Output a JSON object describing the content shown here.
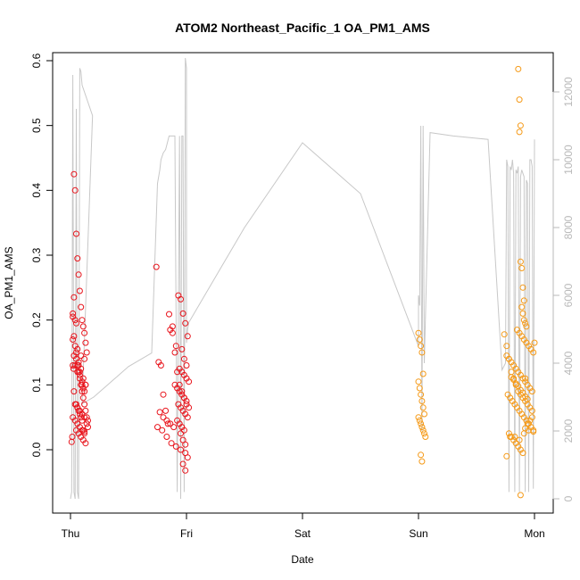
{
  "chart_data": {
    "type": "scatter",
    "title": "ATOM2 Northeast_Pacific_1 OA_PM1_AMS",
    "xlabel": "Date",
    "ylabel": "OA_PM1_AMS",
    "x_ticks": [
      "Thu",
      "Fri",
      "Sat",
      "Sun",
      "Mon"
    ],
    "xlim": [
      0,
      4
    ],
    "ylim": [
      -0.1,
      0.6
    ],
    "y_ticks": [
      "0.0",
      "0.1",
      "0.2",
      "0.3",
      "0.4",
      "0.5",
      "0.6"
    ],
    "y2_ticks": [
      "0",
      "2000",
      "4000",
      "6000",
      "8000",
      "10000",
      "12000"
    ],
    "y2lim": [
      0,
      12000
    ],
    "grid": false,
    "colors": {
      "early_points": "#e8141c",
      "late_points": "#f59a18",
      "altitude_line": "#c8c8c8",
      "right_axis": "#b9b9b9"
    },
    "series": [
      {
        "color": "early_points",
        "x": [
          0.01,
          0.015,
          0.02,
          0.025,
          0.03,
          0.02,
          0.03,
          0.04,
          0.05,
          0.06,
          0.07,
          0.08,
          0.09,
          0.1,
          0.11,
          0.12,
          0.13,
          0.14,
          0.03,
          0.04,
          0.05,
          0.06,
          0.07,
          0.08,
          0.09,
          0.1,
          0.11,
          0.12,
          0.05,
          0.06,
          0.07,
          0.08,
          0.09,
          0.1,
          0.11,
          0.12,
          0.13,
          0.02,
          0.03,
          0.04,
          0.05,
          0.06,
          0.07,
          0.08,
          0.09,
          0.1,
          0.11,
          0.12,
          0.13,
          0.14,
          0.15,
          0.03,
          0.04,
          0.06,
          0.08,
          0.1,
          0.12,
          0.02,
          0.05,
          0.07,
          0.09,
          0.11,
          0.13,
          0.04,
          0.06,
          0.08,
          0.1,
          0.12,
          0.14,
          0.15,
          0.05,
          0.07,
          0.09,
          0.11,
          0.13,
          0.02,
          0.04,
          0.06,
          0.08,
          0.1,
          0.12
        ],
        "y": [
          0.012,
          0.02,
          0.13,
          0.125,
          0.09,
          0.21,
          0.235,
          0.2,
          0.195,
          0.155,
          0.13,
          0.12,
          0.145,
          0.105,
          0.095,
          0.14,
          0.165,
          0.15,
          0.425,
          0.4,
          0.333,
          0.295,
          0.27,
          0.245,
          0.22,
          0.2,
          0.19,
          0.18,
          0.07,
          0.065,
          0.06,
          0.055,
          0.05,
          0.045,
          0.03,
          0.025,
          0.1,
          0.205,
          0.175,
          0.16,
          0.14,
          0.13,
          0.12,
          0.11,
          0.1,
          0.09,
          0.08,
          0.07,
          0.06,
          0.05,
          0.045,
          0.145,
          0.13,
          0.12,
          0.115,
          0.1,
          0.09,
          0.17,
          0.15,
          0.135,
          0.125,
          0.11,
          0.1,
          0.07,
          0.065,
          0.06,
          0.055,
          0.05,
          0.04,
          0.035,
          0.03,
          0.025,
          0.02,
          0.015,
          0.01,
          0.05,
          0.045,
          0.04,
          0.035,
          0.03,
          0.028
        ]
      },
      {
        "color": "early_points",
        "x": [
          0.74,
          0.76,
          0.78,
          0.8,
          0.82,
          0.84,
          0.86,
          0.88,
          0.9,
          0.92,
          0.94,
          0.96,
          0.98,
          1.0,
          1.02,
          0.75,
          0.79,
          0.83,
          0.87,
          0.91,
          0.95,
          0.99,
          0.93,
          0.95,
          0.97,
          0.99,
          1.01,
          0.96,
          0.98,
          1.0,
          0.94,
          0.96,
          0.98,
          1.0,
          1.02,
          0.9,
          0.92,
          0.94,
          0.96,
          0.98,
          1.0,
          0.93,
          0.95,
          0.97,
          0.99,
          1.01,
          0.92,
          0.94,
          0.96,
          0.98,
          0.85,
          0.88,
          0.91,
          0.77,
          0.8,
          0.83,
          0.86,
          0.89,
          0.97,
          0.99,
          1.01,
          0.95,
          0.97,
          0.99
        ],
        "y": [
          0.282,
          0.135,
          0.13,
          0.085,
          0.06,
          0.04,
          0.185,
          0.18,
          0.15,
          0.12,
          0.1,
          0.09,
          0.08,
          0.07,
          0.065,
          0.035,
          0.03,
          0.02,
          0.01,
          0.005,
          0.0,
          -0.005,
          0.238,
          0.232,
          0.21,
          0.195,
          0.175,
          0.155,
          0.14,
          0.13,
          0.125,
          0.12,
          0.115,
          0.11,
          0.105,
          0.1,
          0.095,
          0.09,
          0.085,
          0.08,
          0.075,
          0.07,
          0.065,
          0.06,
          0.055,
          0.05,
          0.045,
          0.04,
          0.035,
          0.03,
          0.209,
          0.19,
          0.16,
          0.058,
          0.05,
          0.045,
          0.04,
          0.035,
          -0.022,
          -0.032,
          -0.012,
          0.025,
          0.015,
          0.008
        ]
      },
      {
        "color": "late_points",
        "x": [
          3.0,
          3.01,
          3.02,
          3.03,
          3.04,
          3.0,
          3.01,
          3.02,
          3.03,
          3.04,
          3.05,
          3.0,
          3.01,
          3.02,
          3.03,
          3.04,
          3.05,
          3.06,
          3.02,
          3.03
        ],
        "y": [
          0.18,
          0.17,
          0.16,
          0.15,
          0.117,
          0.105,
          0.095,
          0.085,
          0.075,
          0.065,
          0.055,
          0.05,
          0.045,
          0.04,
          0.035,
          0.03,
          0.025,
          0.02,
          -0.008,
          -0.018
        ]
      },
      {
        "color": "late_points",
        "x": [
          3.74,
          3.76,
          3.78,
          3.8,
          3.82,
          3.84,
          3.86,
          3.88,
          3.9,
          3.92,
          3.94,
          3.96,
          3.98,
          4.0,
          3.86,
          3.87,
          3.88,
          3.87,
          3.88,
          3.89,
          3.9,
          3.91,
          3.89,
          3.9,
          3.91,
          3.92,
          3.93,
          3.85,
          3.87,
          3.89,
          3.91,
          3.93,
          3.95,
          3.97,
          3.99,
          3.76,
          3.78,
          3.8,
          3.82,
          3.84,
          3.86,
          3.88,
          3.9,
          3.92,
          3.94,
          3.96,
          3.98,
          3.77,
          3.79,
          3.81,
          3.83,
          3.85,
          3.87,
          3.89,
          3.91,
          3.93,
          3.95,
          3.97,
          3.99,
          3.78,
          3.8,
          3.82,
          3.84,
          3.86,
          3.88,
          3.9,
          3.92,
          3.94,
          3.96,
          3.98,
          3.8,
          3.82,
          3.84,
          3.86,
          3.88,
          3.9,
          3.92,
          3.94,
          3.76,
          3.79,
          3.83,
          3.87,
          3.91,
          3.95,
          3.99,
          3.88,
          3.92
        ],
        "y": [
          0.178,
          0.16,
          0.14,
          0.12,
          0.11,
          0.1,
          0.09,
          0.085,
          0.08,
          0.075,
          0.07,
          0.065,
          0.06,
          0.165,
          0.587,
          0.54,
          0.5,
          0.49,
          0.29,
          0.28,
          0.25,
          0.23,
          0.22,
          0.21,
          0.2,
          0.195,
          0.19,
          0.185,
          0.18,
          0.175,
          0.17,
          0.165,
          0.16,
          0.155,
          0.15,
          0.145,
          0.14,
          0.135,
          0.13,
          0.125,
          0.12,
          0.115,
          0.11,
          0.105,
          0.1,
          0.095,
          0.09,
          0.085,
          0.08,
          0.075,
          0.07,
          0.065,
          0.06,
          0.055,
          0.05,
          0.045,
          0.04,
          0.035,
          0.03,
          0.025,
          0.02,
          0.015,
          0.01,
          0.005,
          0.0,
          -0.005,
          0.033,
          0.04,
          0.045,
          0.05,
          0.112,
          0.108,
          0.102,
          0.098,
          0.092,
          0.088,
          0.082,
          0.078,
          -0.01,
          0.02,
          0.02,
          0.015,
          0.025,
          0.03,
          0.028,
          -0.07,
          0.11
        ]
      }
    ],
    "altitude_line": {
      "x": [
        0.0,
        0.01,
        0.02,
        0.03,
        0.04,
        0.05,
        0.06,
        0.07,
        0.08,
        0.09,
        0.1,
        0.11,
        0.12,
        0.13,
        0.14,
        0.15,
        0.16,
        0.17,
        0.18,
        0.19,
        0.1,
        0.2,
        0.3,
        0.4,
        0.5,
        0.6,
        0.7,
        0.75,
        0.76,
        0.77,
        0.78,
        0.8,
        0.82,
        0.85,
        0.88,
        0.9,
        0.92,
        0.94,
        0.95,
        0.96,
        0.97,
        0.98,
        0.99,
        1.0,
        1.0,
        1.01,
        1.02,
        1.5,
        2.0,
        2.5,
        3.0,
        3.0,
        3.01,
        3.02,
        3.03,
        3.04,
        3.05,
        3.1,
        3.3,
        3.6,
        3.72,
        3.75,
        3.76,
        3.77,
        3.78,
        3.79,
        3.8,
        3.81,
        3.82,
        3.83,
        3.84,
        3.85,
        3.86,
        3.87,
        3.88,
        3.89,
        3.9,
        3.91,
        3.92,
        3.93,
        3.94,
        3.95,
        3.96,
        3.97,
        3.98,
        3.99,
        4.0
      ],
      "y": [
        0,
        200,
        12500,
        200,
        0,
        11500,
        200,
        0,
        12700,
        12600,
        12200,
        12100,
        12000,
        11900,
        11800,
        11700,
        11600,
        11500,
        11400,
        11300,
        2800,
        3000,
        3300,
        3600,
        3900,
        4100,
        4300,
        9300,
        9500,
        9700,
        10000,
        10200,
        10300,
        10700,
        10700,
        10700,
        200,
        10700,
        0,
        10700,
        10700,
        200,
        13000,
        12700,
        4600,
        5000,
        5200,
        8000,
        10500,
        9000,
        4500,
        6000,
        5700,
        11000,
        2000,
        11000,
        4000,
        10800,
        10700,
        10600,
        3800,
        4000,
        10000,
        9800,
        200,
        9800,
        9700,
        10000,
        9600,
        200,
        9700,
        9600,
        9800,
        200,
        9500,
        9700,
        9600,
        9500,
        200,
        9400,
        9300,
        200,
        10000,
        10000,
        9800,
        300,
        10600
      ]
    }
  }
}
